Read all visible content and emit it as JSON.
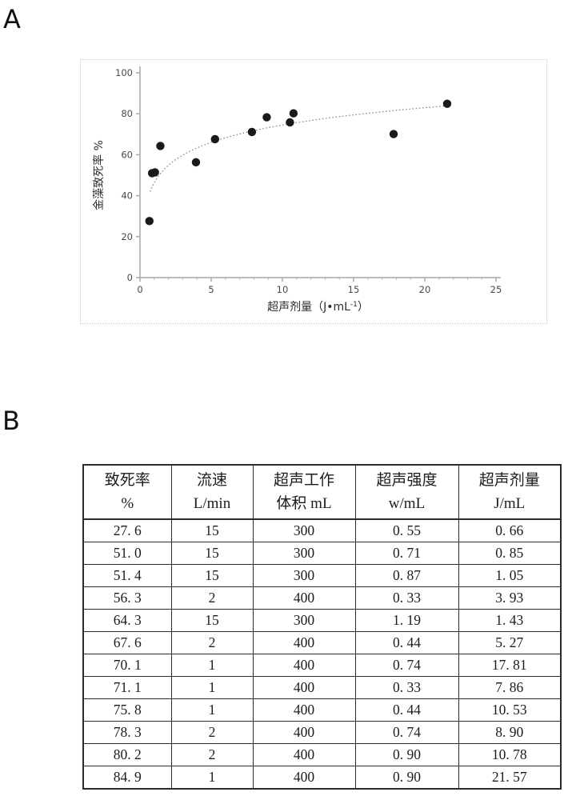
{
  "figure": {
    "panel_a_label": "A",
    "panel_b_label": "B"
  },
  "chart_data": [
    {
      "type": "scatter",
      "title": "",
      "xlabel": "超声剂量（J•mL-1）",
      "xlabel_parts": {
        "prefix": "超声剂量（J•mL",
        "sup": "-1",
        "suffix": "）"
      },
      "ylabel": "金藻致死率 %",
      "xlim": [
        0,
        25
      ],
      "ylim": [
        0,
        100
      ],
      "x_ticks": [
        0,
        5,
        10,
        15,
        20,
        25
      ],
      "y_ticks": [
        0,
        20,
        40,
        60,
        80,
        100
      ],
      "x_minor_tick_step": 1,
      "grid": false,
      "legend": "none",
      "points": [
        {
          "x": 0.66,
          "y": 27.6
        },
        {
          "x": 0.85,
          "y": 51.0
        },
        {
          "x": 1.05,
          "y": 51.4
        },
        {
          "x": 1.43,
          "y": 64.3
        },
        {
          "x": 3.93,
          "y": 56.3
        },
        {
          "x": 5.27,
          "y": 67.6
        },
        {
          "x": 7.86,
          "y": 71.1
        },
        {
          "x": 8.9,
          "y": 78.3
        },
        {
          "x": 10.53,
          "y": 75.8
        },
        {
          "x": 10.78,
          "y": 80.2
        },
        {
          "x": 17.81,
          "y": 70.1
        },
        {
          "x": 21.57,
          "y": 84.9
        }
      ],
      "trendline": {
        "style": "dotted",
        "model": "logarithmic",
        "a": 12.2,
        "b": 46.4,
        "x_start": 0.7,
        "x_end": 22
      },
      "colors": {
        "point": "#1a1a1a",
        "axis": "#a9a9a9",
        "tick_text": "#4a4a4a",
        "trend": "#8c8c8c"
      }
    },
    {
      "type": "table",
      "columns": [
        {
          "line1": "致死率",
          "line2": "%"
        },
        {
          "line1": "流速",
          "line2": "L/min"
        },
        {
          "line1": "超声工作",
          "line2": "体积 mL"
        },
        {
          "line1": "超声强度",
          "line2": "w/mL"
        },
        {
          "line1": "超声剂量",
          "line2": "J/mL"
        }
      ],
      "rows": [
        [
          "27. 6",
          "15",
          "300",
          "0. 55",
          "0. 66"
        ],
        [
          "51. 0",
          "15",
          "300",
          "0. 71",
          "0. 85"
        ],
        [
          "51. 4",
          "15",
          "300",
          "0. 87",
          "1. 05"
        ],
        [
          "56. 3",
          "2",
          "400",
          "0. 33",
          "3. 93"
        ],
        [
          "64. 3",
          "15",
          "300",
          "1. 19",
          "1. 43"
        ],
        [
          "67. 6",
          "2",
          "400",
          "0. 44",
          "5. 27"
        ],
        [
          "70. 1",
          "1",
          "400",
          "0. 74",
          "17. 81"
        ],
        [
          "71. 1",
          "1",
          "400",
          "0. 33",
          "7. 86"
        ],
        [
          "75. 8",
          "1",
          "400",
          "0. 44",
          "10. 53"
        ],
        [
          "78. 3",
          "2",
          "400",
          "0. 74",
          "8. 90"
        ],
        [
          "80. 2",
          "2",
          "400",
          "0. 90",
          "10. 78"
        ],
        [
          "84. 9",
          "1",
          "400",
          "0. 90",
          "21. 57"
        ]
      ]
    }
  ]
}
